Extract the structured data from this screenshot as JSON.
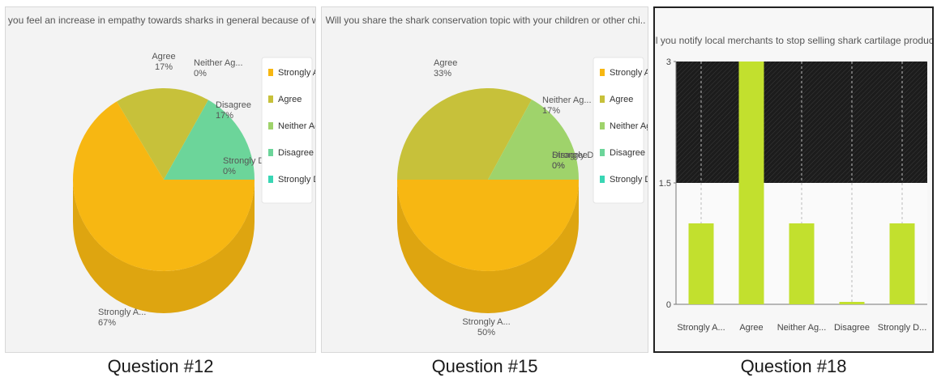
{
  "colors": {
    "strongly_agree": "#f7b712",
    "agree": "#c7c13a",
    "neither": "#9fd36b",
    "disagree": "#6cd59a",
    "strongly_disagree": "#39d6b4",
    "bar": "#c2e02e"
  },
  "captions": [
    "Question #12",
    "Question #15",
    "Question #18"
  ],
  "chart_data": [
    {
      "type": "pie",
      "title": "Do you feel an increase in empathy towards sharks in general because of wha",
      "categories": [
        "Strongly A...",
        "Agree",
        "Neither Ag...",
        "Disagree",
        "Strongly D..."
      ],
      "values": [
        67,
        17,
        0,
        17,
        0
      ],
      "slice_labels": [
        {
          "name": "Strongly A...",
          "pct": "67%"
        },
        {
          "name": "Agree",
          "pct": "17%"
        },
        {
          "name": "Neither Ag...",
          "pct": "0%"
        },
        {
          "name": "Disagree",
          "pct": "17%"
        },
        {
          "name": "Strongly D...",
          "pct": "0%"
        }
      ],
      "legend": [
        "Strongly A...",
        "Agree",
        "Neither Ag...",
        "Disagree",
        "Strongly D..."
      ],
      "legend_position": "right"
    },
    {
      "type": "pie",
      "title": "Will you share the shark conservation topic with your children or other chi..",
      "categories": [
        "Strongly A...",
        "Agree",
        "Neither Ag...",
        "Disagree",
        "Strongly D..."
      ],
      "values": [
        50,
        33,
        17,
        0,
        0
      ],
      "slice_labels": [
        {
          "name": "Strongly A...",
          "pct": "50%"
        },
        {
          "name": "Agree",
          "pct": "33%"
        },
        {
          "name": "Neither Ag...",
          "pct": "17%"
        },
        {
          "name": "Disagree",
          "pct": "0%"
        },
        {
          "name": "Strongly D...",
          "pct": "0%"
        }
      ],
      "legend": [
        "Strongly A...",
        "Agree",
        "Neither Ag...",
        "Disagree",
        "Strongly D..."
      ],
      "legend_position": "right"
    },
    {
      "type": "bar",
      "title": "Will you notify local merchants to stop selling shark cartilage products?",
      "categories": [
        "Strongly A...",
        "Agree",
        "Neither Ag...",
        "Disagree",
        "Strongly D..."
      ],
      "values": [
        1,
        3,
        1,
        0,
        1
      ],
      "ylim": [
        0,
        3
      ],
      "yticks": [
        "0",
        "1.5",
        "3"
      ],
      "grid": true
    }
  ]
}
